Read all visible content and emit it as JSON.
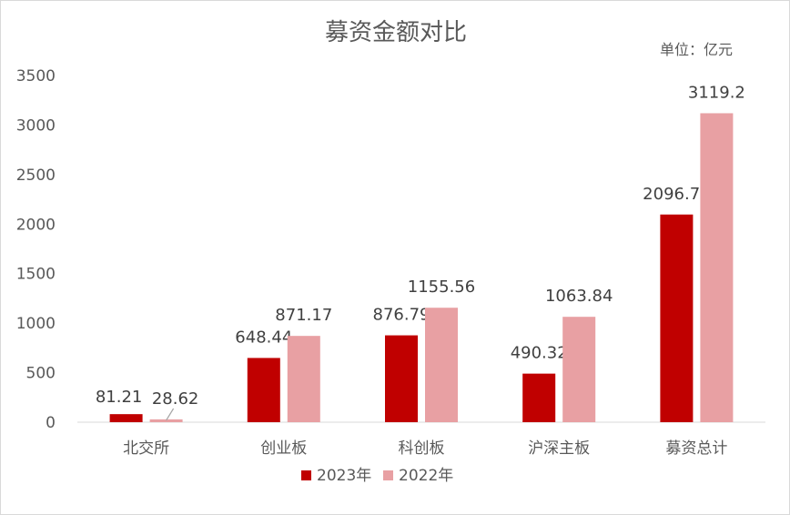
{
  "chart_data": {
    "type": "bar",
    "title": "募资金额对比",
    "unit_label": "单位：亿元",
    "categories": [
      "北交所",
      "创业板",
      "科创板",
      "沪深主板",
      "募资总计"
    ],
    "series": [
      {
        "name": "2023年",
        "color": "#c00000",
        "values": [
          81.21,
          648.44,
          876.79,
          490.32,
          2096.77
        ],
        "labels": [
          "81.21",
          "648.44",
          "876.79",
          "490.32",
          "2096.77"
        ]
      },
      {
        "name": "2022年",
        "color": "#e8a0a3",
        "values": [
          28.62,
          871.17,
          1155.56,
          1063.84,
          3119.2
        ],
        "labels": [
          "28.62",
          "871.17",
          "1155.56",
          "1063.84",
          "3119.2"
        ]
      }
    ],
    "ylim": [
      0,
      3500
    ],
    "yticks": [
      0,
      500,
      1000,
      1500,
      2000,
      2500,
      3000,
      3500
    ],
    "grid": false,
    "legend_position": "bottom"
  }
}
